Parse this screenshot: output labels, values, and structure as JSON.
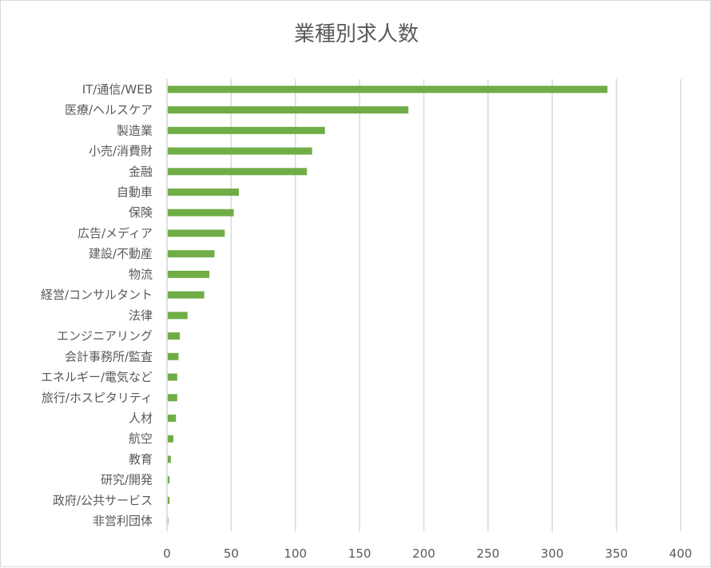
{
  "chart_data": {
    "type": "bar",
    "orientation": "horizontal",
    "title": "業種別求人数",
    "categories": [
      "IT/通信/WEB",
      "医療/ヘルスケア",
      "製造業",
      "小売/消費財",
      "金融",
      "自動車",
      "保険",
      "広告/メディア",
      "建設/不動産",
      "物流",
      "経営/コンサルタント",
      "法律",
      "エンジニアリング",
      "会計事務所/監査",
      "エネルギー/電気など",
      "旅行/ホスピタリティ",
      "人材",
      "航空",
      "教育",
      "研究/開発",
      "政府/公共サービス",
      "非営利団体"
    ],
    "values": [
      343,
      188,
      123,
      113,
      109,
      56,
      52,
      45,
      37,
      33,
      29,
      16,
      10,
      9,
      8,
      8,
      7,
      5,
      3,
      2,
      2,
      1
    ],
    "xlim": [
      0,
      400
    ],
    "xticks": [
      "0",
      "50",
      "100",
      "150",
      "200",
      "250",
      "300",
      "350",
      "400"
    ],
    "grid": true,
    "bar_color": "#70ad47",
    "legend": "none"
  }
}
